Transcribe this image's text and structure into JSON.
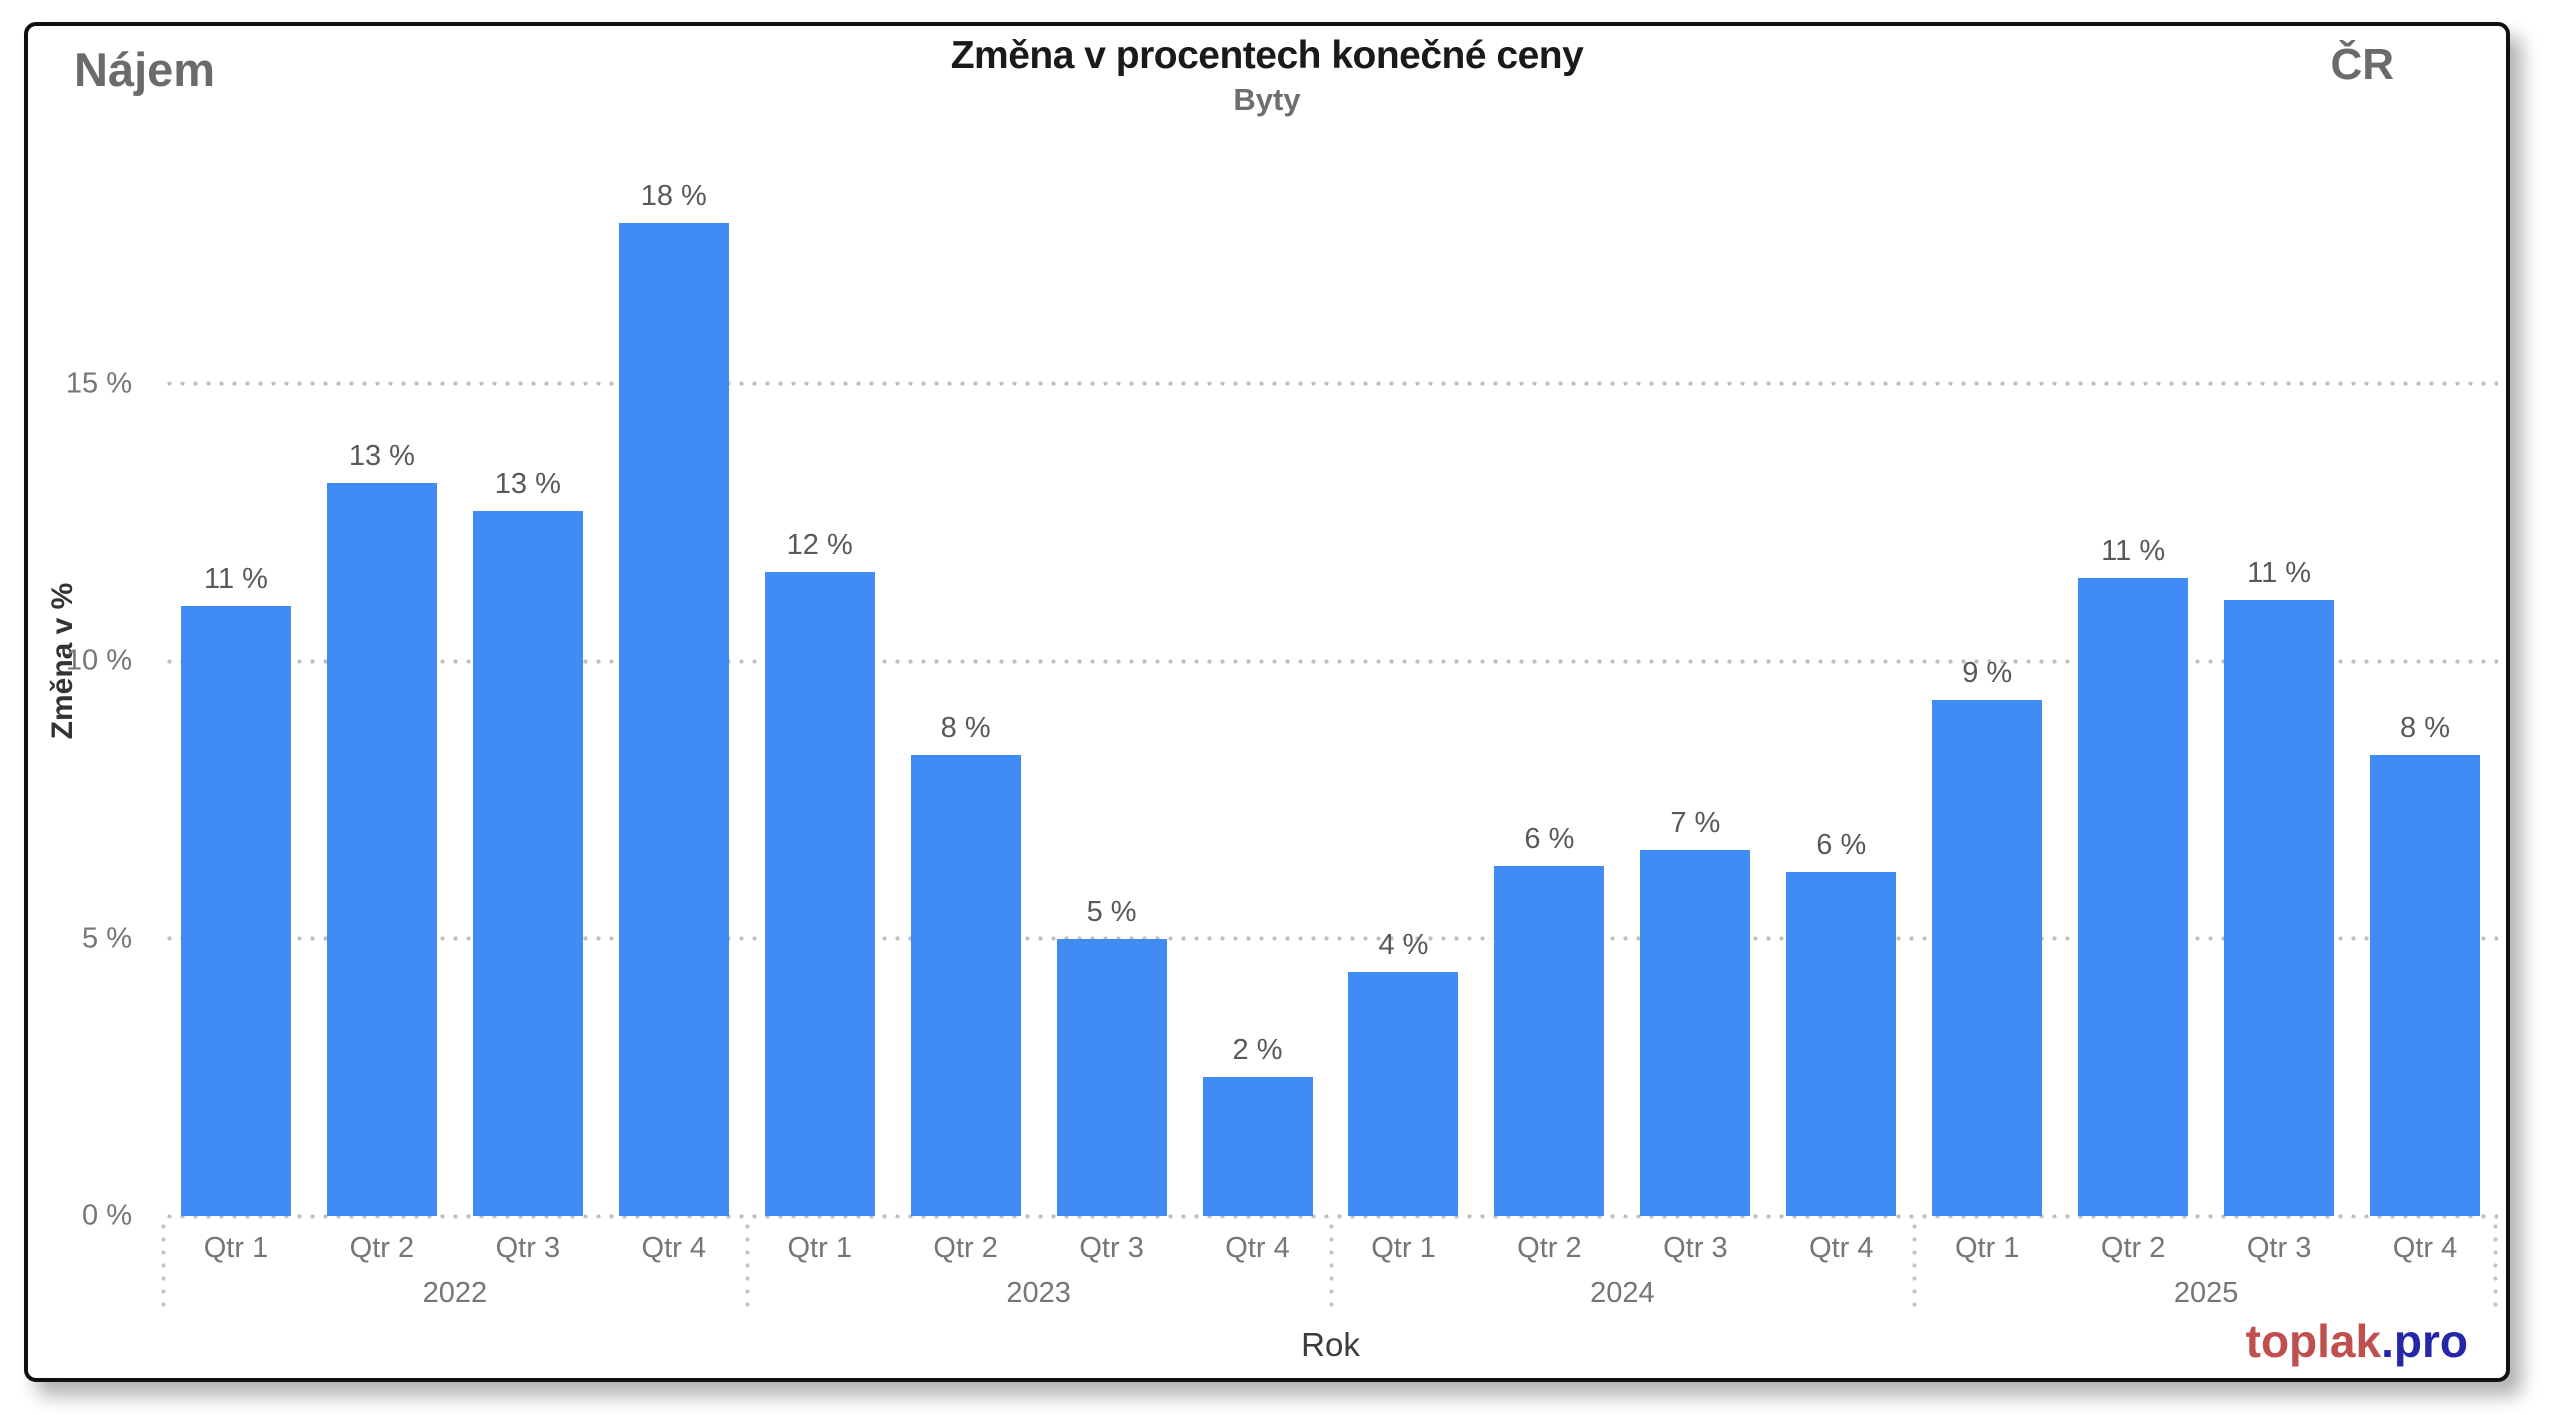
{
  "header": {
    "top_left_label": "Nájem",
    "title": "Změna v procentech konečné ceny",
    "subtitle": "Byty",
    "top_right_label": "ČR"
  },
  "watermark": {
    "primary": "toplak",
    "secondary": ".pro"
  },
  "colors": {
    "bar": "#418BF4",
    "gridline": "#bdbdbd",
    "tick_label": "#767676",
    "data_label": "#595959",
    "title": "#1a1a1a",
    "subtitle": "#6e6e6e",
    "corner_labels": "#6b6b6b",
    "x_axis_title": "#3c3c3c",
    "watermark_primary": "#c05050",
    "watermark_secondary": "#2626a8",
    "card_border": "#101010"
  },
  "chart_data": {
    "type": "bar",
    "title": "Změna v procentech konečné ceny",
    "subtitle": "Byty",
    "xlabel": "Rok",
    "ylabel": "Změna v %",
    "ylim": [
      0,
      20
    ],
    "grid": "horizontal dotted lines at 0, 5, 10, 15",
    "legend": "none",
    "bar_color": "#418BF4",
    "yticks": [
      {
        "value": 0,
        "label": "0 %"
      },
      {
        "value": 5,
        "label": "5 %"
      },
      {
        "value": 10,
        "label": "10 %"
      },
      {
        "value": 15,
        "label": "15 %"
      }
    ],
    "groups": [
      {
        "year": "2022",
        "bars": [
          {
            "quarter": "Qtr 1",
            "value": 11.0,
            "label": "11 %"
          },
          {
            "quarter": "Qtr 2",
            "value": 13.2,
            "label": "13 %"
          },
          {
            "quarter": "Qtr 3",
            "value": 12.7,
            "label": "13 %"
          },
          {
            "quarter": "Qtr 4",
            "value": 17.9,
            "label": "18 %"
          }
        ]
      },
      {
        "year": "2023",
        "bars": [
          {
            "quarter": "Qtr 1",
            "value": 11.6,
            "label": "12 %"
          },
          {
            "quarter": "Qtr 2",
            "value": 8.3,
            "label": "8 %"
          },
          {
            "quarter": "Qtr 3",
            "value": 5.0,
            "label": "5 %"
          },
          {
            "quarter": "Qtr 4",
            "value": 2.5,
            "label": "2 %"
          }
        ]
      },
      {
        "year": "2024",
        "bars": [
          {
            "quarter": "Qtr 1",
            "value": 4.4,
            "label": "4 %"
          },
          {
            "quarter": "Qtr 2",
            "value": 6.3,
            "label": "6 %"
          },
          {
            "quarter": "Qtr 3",
            "value": 6.6,
            "label": "7 %"
          },
          {
            "quarter": "Qtr 4",
            "value": 6.2,
            "label": "6 %"
          }
        ]
      },
      {
        "year": "2025",
        "bars": [
          {
            "quarter": "Qtr 1",
            "value": 9.3,
            "label": "9 %"
          },
          {
            "quarter": "Qtr 2",
            "value": 11.5,
            "label": "11 %"
          },
          {
            "quarter": "Qtr 3",
            "value": 11.1,
            "label": "11 %"
          },
          {
            "quarter": "Qtr 4",
            "value": 8.3,
            "label": "8 %"
          }
        ]
      }
    ]
  }
}
